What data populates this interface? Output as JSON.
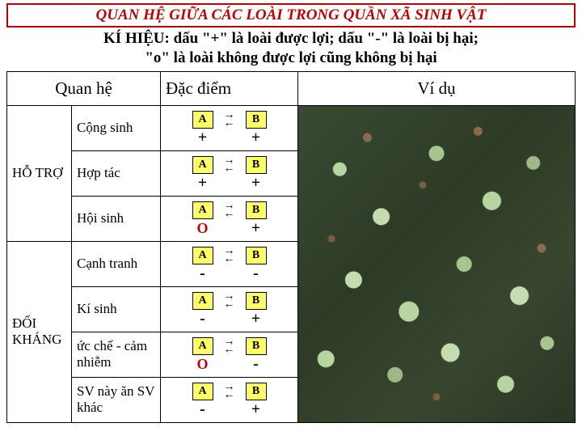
{
  "header": {
    "title": "QUAN HỆ GIỮA CÁC LOÀI TRONG QUẦN XÃ SINH VẬT",
    "subtitle_line1": "KÍ HIỆU: dấu \"+\" là loài được lợi; dấu \"-\" là loài bị hại;",
    "subtitle_line2": "\"o\" là loài không được lợi cũng không bị hại"
  },
  "table": {
    "headers": {
      "relation": "Quan hệ",
      "characteristic": "Đặc điểm",
      "example": "Ví dụ"
    },
    "groups": [
      {
        "label": "HỖ TRỢ",
        "rows": [
          {
            "name": "Cộng sinh",
            "a_sign": "+",
            "b_sign": "+"
          },
          {
            "name": "Hợp tác",
            "a_sign": "+",
            "b_sign": "+"
          },
          {
            "name": "Hội sinh",
            "a_sign": "O",
            "b_sign": "+"
          }
        ]
      },
      {
        "label": "ĐỐI KHÁNG",
        "rows": [
          {
            "name": "Cạnh tranh",
            "a_sign": "-",
            "b_sign": "-"
          },
          {
            "name": "Kí sinh",
            "a_sign": "-",
            "b_sign": "+"
          },
          {
            "name": "ức chế - cảm nhiễm",
            "a_sign": "O",
            "b_sign": "-"
          },
          {
            "name": "SV này ăn SV khác",
            "a_sign": "-",
            "b_sign": "+"
          }
        ]
      }
    ],
    "node_labels": {
      "a": "A",
      "b": "B"
    },
    "colors": {
      "title_color": "#c00000",
      "node_bg": "#ffff66",
      "zero_color": "#c00000"
    }
  }
}
